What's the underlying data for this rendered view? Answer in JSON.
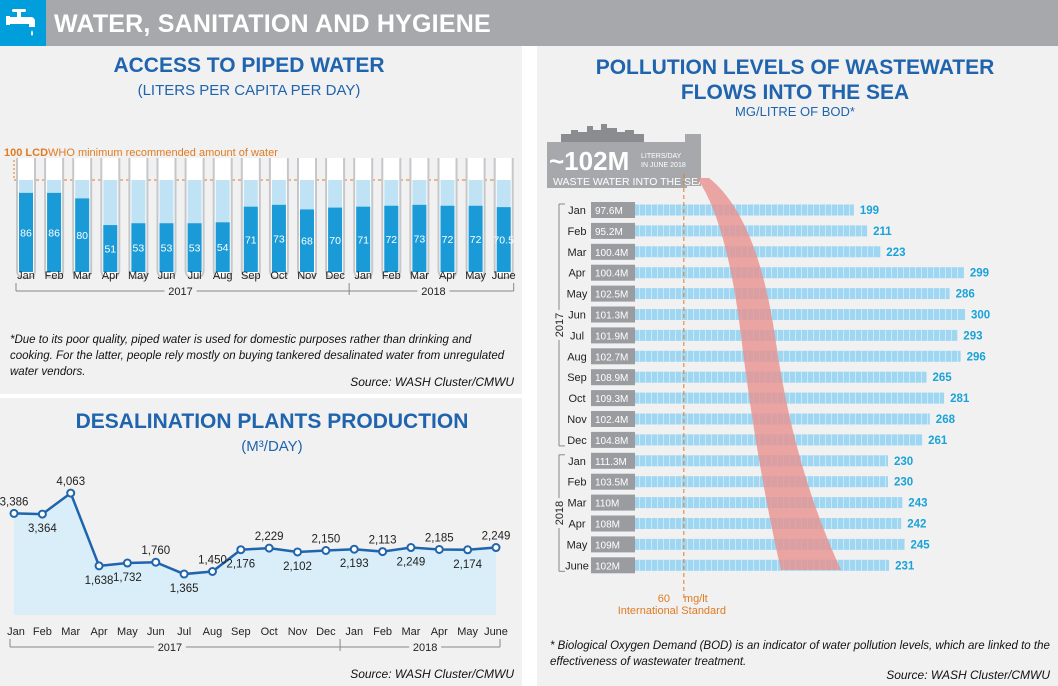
{
  "header": {
    "title": "WATER, SANITATION AND HYGIENE",
    "icon": "water-tap-icon"
  },
  "colors": {
    "blue_dark": "#1f64ad",
    "blue_light": "#009edb",
    "tube_fill": "#1a9bd7",
    "tube_empty": "#bfe3f4",
    "orange": "#e07b22",
    "pink": "#e8918d",
    "bar": "#9fd7f3",
    "label_cyan": "#1aa3d8",
    "area": "#d9eef9",
    "line": "#1f64ad"
  },
  "access": {
    "title": "ACCESS TO PIPED WATER",
    "subtitle": "(LITERS PER CAPITA PER DAY)",
    "note": "*Due to its poor quality, piped water is used for domestic purposes rather than drinking and cooking. For the latter, people rely mostly on buying tankered desalinated water from unregulated water vendors.",
    "source": "Source: WASH Cluster/CMWU"
  },
  "desal": {
    "title": "DESALINATION PLANTS PRODUCTION",
    "subtitle": "(M³/DAY)",
    "source": "Source: WASH Cluster/CMWU"
  },
  "pollution": {
    "title_line1": "POLLUTION LEVELS OF WASTEWATER",
    "title_line2": "FLOWS INTO THE SEA",
    "subtitle": "MG/LITRE OF BOD*",
    "callout_value": "~102M",
    "callout_small1": "LITERS/DAY",
    "callout_small2": "IN JUNE 2018",
    "callout_label": "WASTE WATER INTO THE SEA",
    "note": "* Biological Oxygen Demand (BOD) is an indicator of water pollution levels, which are linked to the effectiveness of wastewater treatment.",
    "source": "Source: WASH Cluster/CMWU"
  },
  "chart_data": [
    {
      "type": "bar",
      "title": "ACCESS TO PIPED WATER",
      "subtitle": "(LITERS PER CAPITA PER DAY)",
      "categories": [
        "Jan",
        "Feb",
        "Mar",
        "Apr",
        "May",
        "Jun",
        "Jul",
        "Aug",
        "Sep",
        "Oct",
        "Nov",
        "Dec",
        "Jan",
        "Feb",
        "Mar",
        "Apr",
        "May",
        "June"
      ],
      "groups": [
        {
          "label": "2017",
          "from": 0,
          "to": 11
        },
        {
          "label": "2018",
          "from": 12,
          "to": 17
        }
      ],
      "values": [
        86,
        86,
        80,
        51,
        53,
        53,
        53,
        54,
        71,
        73,
        68,
        70,
        71,
        72,
        73,
        72,
        72,
        70.5
      ],
      "value_labels": [
        "86",
        "86",
        "80",
        "51",
        "53",
        "53",
        "53",
        "54",
        "71",
        "73",
        "68",
        "70",
        "71",
        "72",
        "73",
        "72",
        "72",
        "70.5"
      ],
      "ylim": [
        0,
        100
      ],
      "reference": {
        "value": 100,
        "value_label": "100 LCD",
        "label": "WHO minimum recommended amount of water"
      }
    },
    {
      "type": "area",
      "title": "DESALINATION PLANTS PRODUCTION",
      "subtitle": "(M³/DAY)",
      "categories": [
        "Jan",
        "Feb",
        "Mar",
        "Apr",
        "May",
        "Jun",
        "Jul",
        "Aug",
        "Sep",
        "Oct",
        "Nov",
        "Dec",
        "Jan",
        "Feb",
        "Mar",
        "Apr",
        "May",
        "June"
      ],
      "groups": [
        {
          "label": "2017",
          "from": 0,
          "to": 11
        },
        {
          "label": "2018",
          "from": 12,
          "to": 17
        }
      ],
      "values": [
        3386,
        3364,
        4063,
        1638,
        1732,
        1760,
        1365,
        1450,
        2176,
        2229,
        2102,
        2150,
        2193,
        2113,
        2249,
        2185,
        2174,
        2249
      ],
      "value_labels": [
        "3,386",
        "3,364",
        "4,063",
        "1,638",
        "1,732",
        "1,760",
        "1,365",
        "1,450",
        "2,176",
        "2,229",
        "2,102",
        "2,150",
        "2,193",
        "2,113",
        "2,249",
        "2,185",
        "2,174",
        "2,249"
      ],
      "label_position": [
        "above",
        "below",
        "above",
        "below",
        "below",
        "above",
        "below",
        "above",
        "below",
        "above",
        "below",
        "above",
        "below",
        "above",
        "below",
        "above",
        "below",
        "above"
      ],
      "ylim": [
        0,
        4500
      ]
    },
    {
      "type": "bar",
      "orientation": "horizontal",
      "title": "POLLUTION LEVELS OF WASTEWATER FLOWS INTO THE SEA",
      "subtitle": "MG/LITRE OF BOD*",
      "categories": [
        "Jan",
        "Feb",
        "Mar",
        "Apr",
        "May",
        "Jun",
        "Jul",
        "Aug",
        "Sep",
        "Oct",
        "Nov",
        "Dec",
        "Jan",
        "Feb",
        "Mar",
        "Apr",
        "May",
        "June"
      ],
      "groups": [
        {
          "label": "2017",
          "from": 0,
          "to": 11
        },
        {
          "label": "2018",
          "from": 12,
          "to": 17
        }
      ],
      "values": [
        199,
        211,
        223,
        299,
        286,
        300,
        293,
        296,
        265,
        281,
        268,
        261,
        230,
        230,
        243,
        242,
        245,
        231
      ],
      "wastewater_volume": [
        "97.6M",
        "95.2M",
        "100.4M",
        "100.4M",
        "102.5M",
        "101.3M",
        "101.9M",
        "102.7M",
        "108.9M",
        "109.3M",
        "102.4M",
        "104.8M",
        "111.3M",
        "103.5M",
        "110M",
        "108M",
        "109M",
        "102M"
      ],
      "reference": {
        "value": 60,
        "value_label": "60",
        "unit": "mg/lt",
        "label": "International Standard"
      },
      "xlim": [
        0,
        300
      ]
    }
  ]
}
